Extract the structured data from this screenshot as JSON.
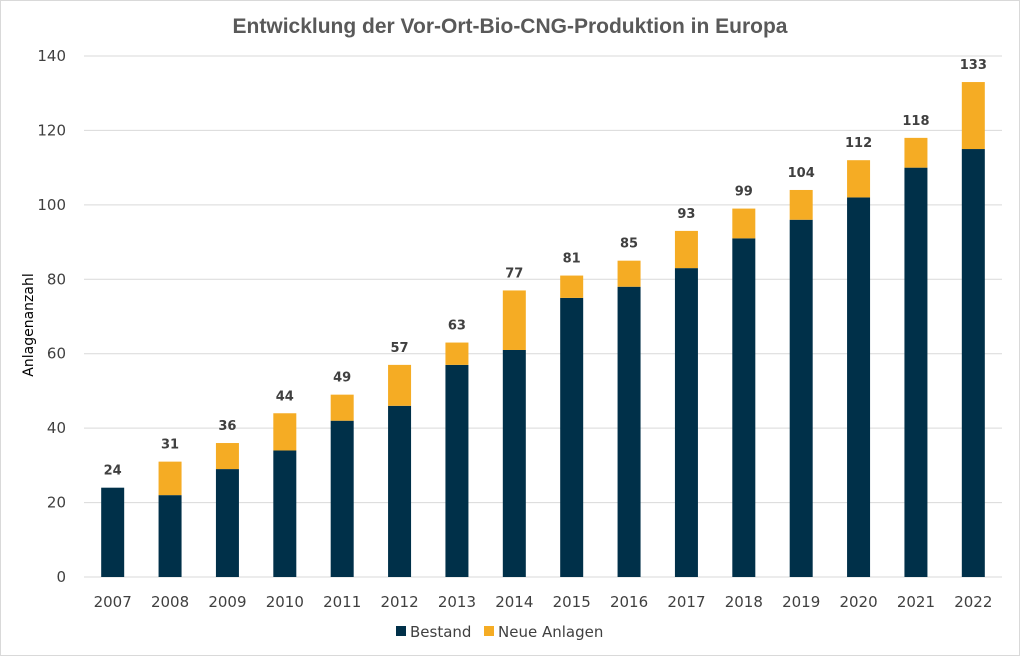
{
  "chart_data": {
    "type": "bar",
    "stacked": true,
    "title": "Entwicklung der Vor-Ort-Bio-CNG-Produktion in Europa",
    "xlabel": "",
    "ylabel": "Anlagenanzahl",
    "ylim": [
      0,
      140
    ],
    "yticks": [
      0,
      20,
      40,
      60,
      80,
      100,
      120,
      140
    ],
    "grid": true,
    "legend_position": "bottom",
    "categories": [
      "2007",
      "2008",
      "2009",
      "2010",
      "2011",
      "2012",
      "2013",
      "2014",
      "2015",
      "2016",
      "2017",
      "2018",
      "2019",
      "2020",
      "2021",
      "2022"
    ],
    "series": [
      {
        "name": "Bestand",
        "color": "#003049",
        "values": [
          24,
          22,
          29,
          34,
          42,
          46,
          57,
          61,
          75,
          78,
          83,
          91,
          96,
          102,
          110,
          115
        ]
      },
      {
        "name": "Neue Anlagen",
        "color": "#f5ac24",
        "values": [
          0,
          9,
          7,
          10,
          7,
          11,
          6,
          16,
          6,
          7,
          10,
          8,
          8,
          10,
          8,
          18
        ]
      }
    ],
    "totals": [
      24,
      31,
      36,
      44,
      49,
      57,
      63,
      77,
      81,
      85,
      93,
      99,
      104,
      112,
      118,
      133
    ]
  }
}
